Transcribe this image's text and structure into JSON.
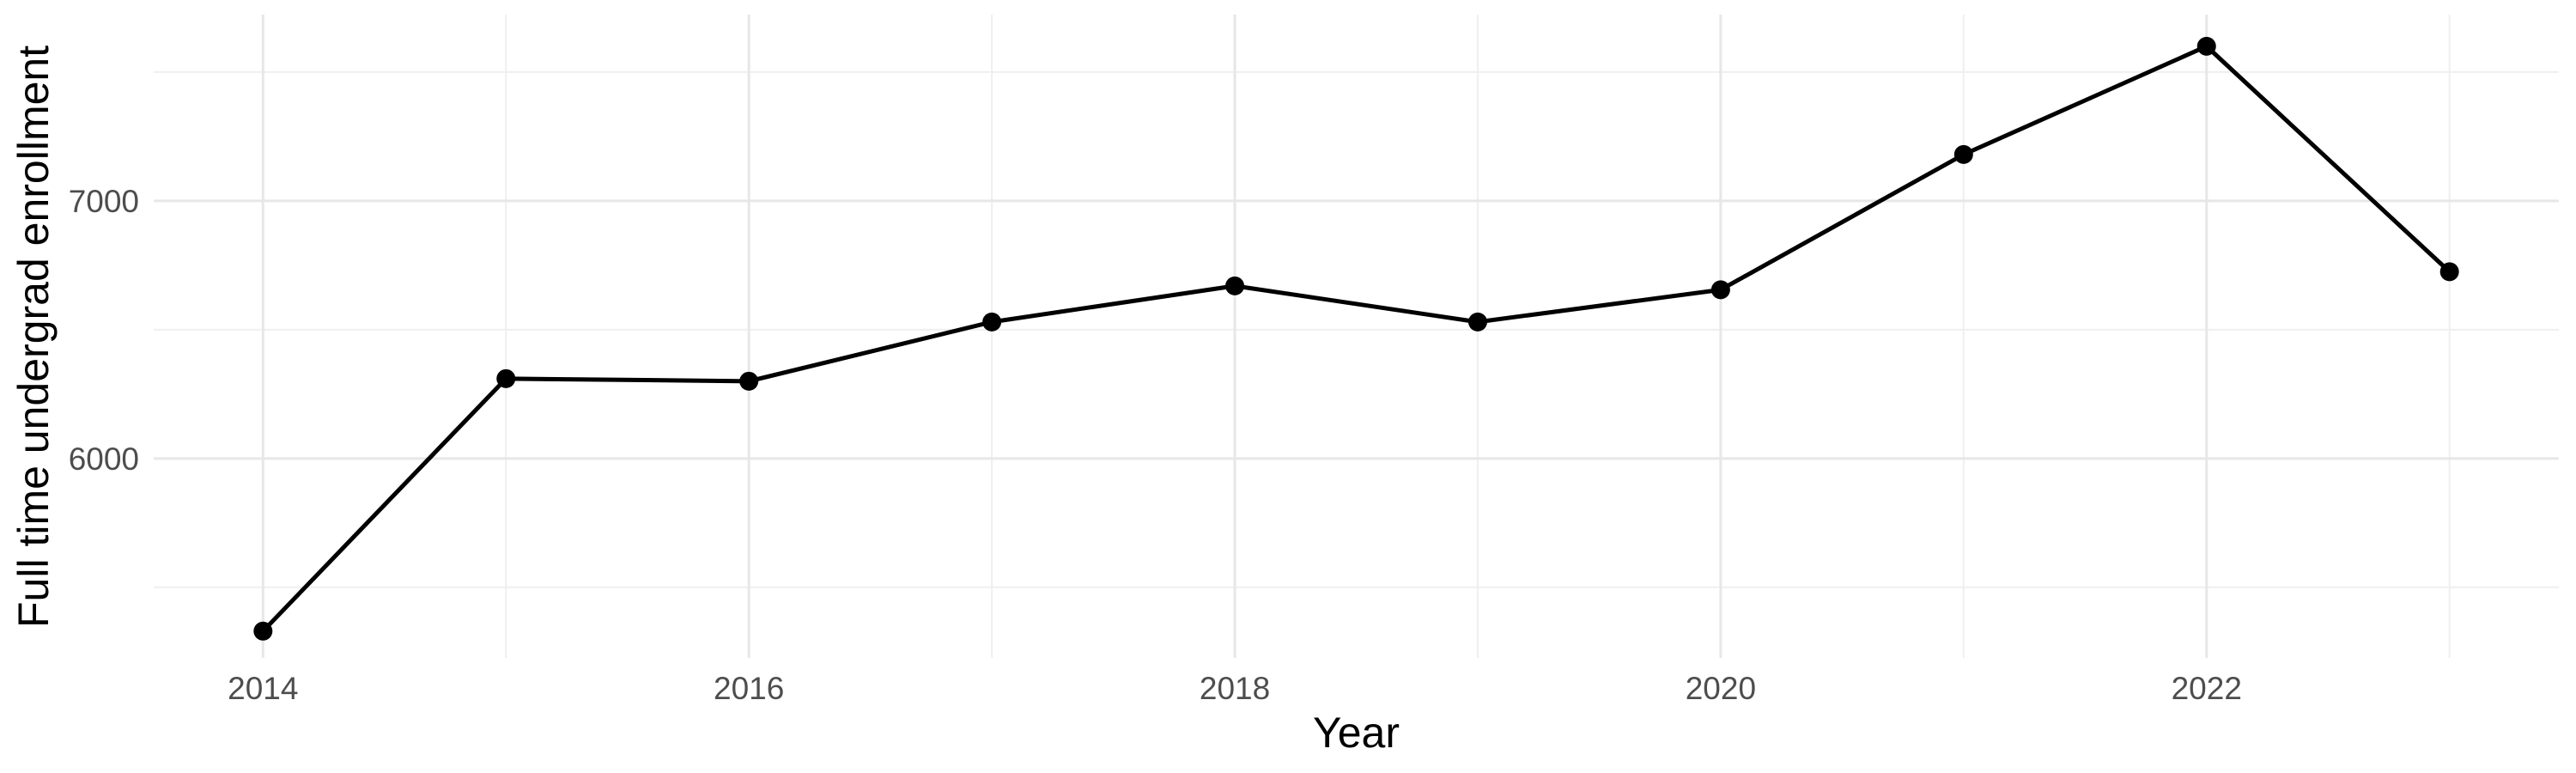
{
  "chart_data": {
    "type": "line",
    "title": "",
    "xlabel": "Year",
    "ylabel": "Full time undergrad enrollment",
    "series": [
      {
        "name": "Full time undergrad enrollment",
        "x": [
          2014,
          2015,
          2016,
          2017,
          2018,
          2019,
          2020,
          2021,
          2022,
          2023
        ],
        "values": [
          5330,
          6310,
          6300,
          6530,
          6670,
          6530,
          6655,
          7180,
          7600,
          6725
        ]
      }
    ],
    "x_ticks": {
      "major": [
        2014,
        2016,
        2018,
        2020,
        2022
      ],
      "minor": [
        2015,
        2017,
        2019,
        2021,
        2023
      ],
      "labels": [
        "2014",
        "2016",
        "2018",
        "2020",
        "2022"
      ]
    },
    "y_ticks": {
      "major": [
        6000,
        7000
      ],
      "minor": [
        5500,
        6500,
        7500
      ],
      "labels": [
        "6000",
        "7000"
      ]
    },
    "xlim": [
      2013.55,
      2023.45
    ],
    "ylim": [
      5226,
      7723
    ],
    "grid": "major+minor",
    "legend": "none",
    "style": {
      "line_color": "#000000",
      "point_color": "#000000",
      "grid_major_color": "#e7e7e7",
      "grid_minor_color": "#efefef",
      "tick_label_color": "#4d4d4d",
      "axis_title_color": "#000000",
      "background": "#ffffff"
    }
  }
}
